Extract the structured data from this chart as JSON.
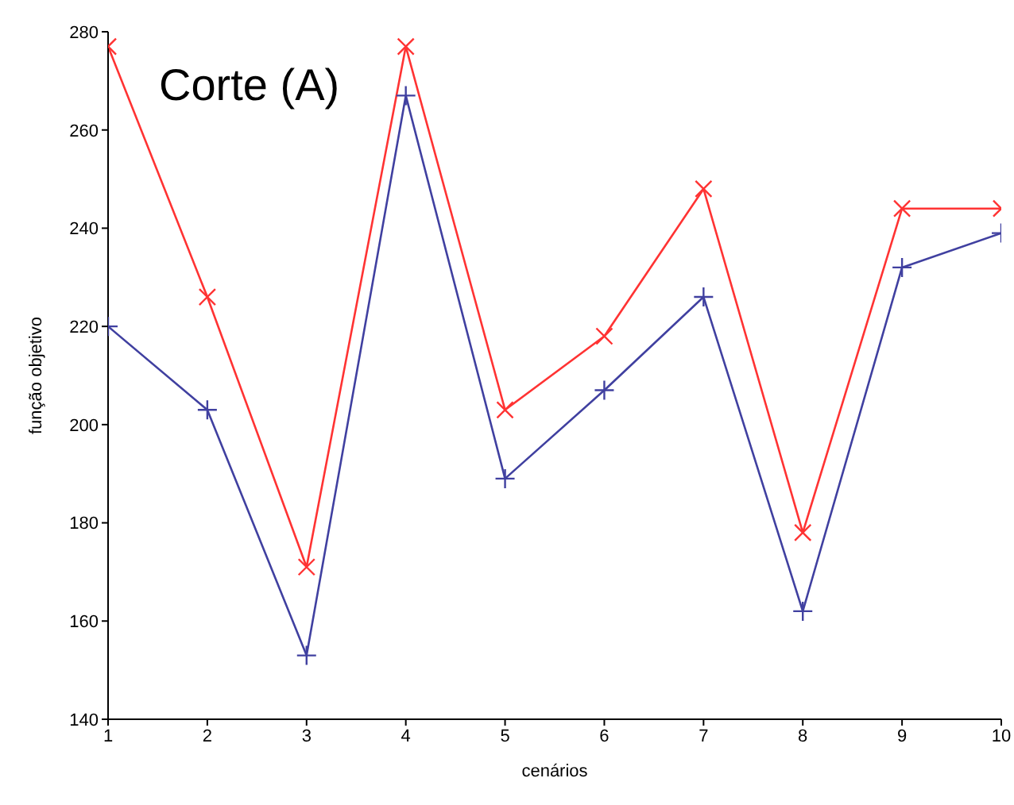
{
  "chart_data": {
    "type": "line",
    "title": "Corte (A)",
    "xlabel": "cenários",
    "ylabel": "função objetivo",
    "x": [
      1,
      2,
      3,
      4,
      5,
      6,
      7,
      8,
      9,
      10
    ],
    "xlim": [
      1,
      10
    ],
    "xticks": [
      1,
      2,
      3,
      4,
      5,
      6,
      7,
      8,
      9,
      10
    ],
    "ylim": [
      140,
      280
    ],
    "yticks": [
      140,
      160,
      180,
      200,
      220,
      240,
      260,
      280
    ],
    "series": [
      {
        "color": "#ff3333",
        "marker": "cross",
        "values": [
          277,
          226,
          171,
          277,
          203,
          218,
          248,
          178,
          244,
          244
        ]
      },
      {
        "color": "#4040a0",
        "marker": "plus",
        "values": [
          220,
          203,
          153,
          267,
          189,
          207,
          226,
          162,
          232,
          239
        ]
      }
    ]
  }
}
